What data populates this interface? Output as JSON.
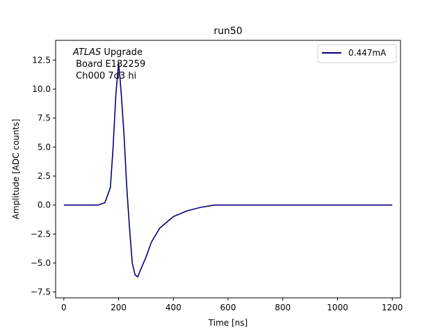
{
  "chart_data": {
    "type": "line",
    "title": "run50",
    "xlabel": "Time [ns]",
    "ylabel": "Amplitude [ADC counts]",
    "xlim": [
      -30,
      1230
    ],
    "ylim": [
      -8,
      14.2
    ],
    "xticks": [
      0,
      200,
      400,
      600,
      800,
      1000,
      1200
    ],
    "xtick_labels": [
      "0",
      "200",
      "400",
      "600",
      "800",
      "1000",
      "1200"
    ],
    "yticks": [
      -7.5,
      -5.0,
      -2.5,
      0.0,
      2.5,
      5.0,
      7.5,
      10.0,
      12.5
    ],
    "ytick_labels": [
      "−7.5",
      "−5.0",
      "−2.5",
      "0.0",
      "2.5",
      "5.0",
      "7.5",
      "10.0",
      "12.5"
    ],
    "grid": false,
    "legend_position": "top-right",
    "annotation": {
      "italic": "ATLAS",
      "rest": " Upgrade",
      "line2": " Board E182259",
      "line3": " Ch000 7d3 hi"
    },
    "series": [
      {
        "name": "0.447mA",
        "color": "#000080",
        "x": [
          0,
          25,
          50,
          75,
          100,
          125,
          150,
          170,
          180,
          190,
          200,
          205,
          210,
          220,
          230,
          240,
          250,
          260,
          270,
          280,
          300,
          320,
          350,
          400,
          450,
          500,
          550,
          600,
          650,
          700,
          750,
          800,
          850,
          900,
          950,
          1000,
          1050,
          1100,
          1150,
          1200
        ],
        "y": [
          0.0,
          0.0,
          0.0,
          0.0,
          0.0,
          0.0,
          0.2,
          1.5,
          5.0,
          9.5,
          12.2,
          11.0,
          9.5,
          6.0,
          1.5,
          -2.0,
          -5.0,
          -6.0,
          -6.2,
          -5.6,
          -4.5,
          -3.2,
          -2.0,
          -1.0,
          -0.5,
          -0.2,
          0.0,
          0.0,
          0.0,
          0.0,
          0.0,
          0.0,
          0.0,
          0.0,
          0.0,
          0.0,
          0.0,
          0.0,
          0.0,
          0.0
        ]
      }
    ]
  }
}
